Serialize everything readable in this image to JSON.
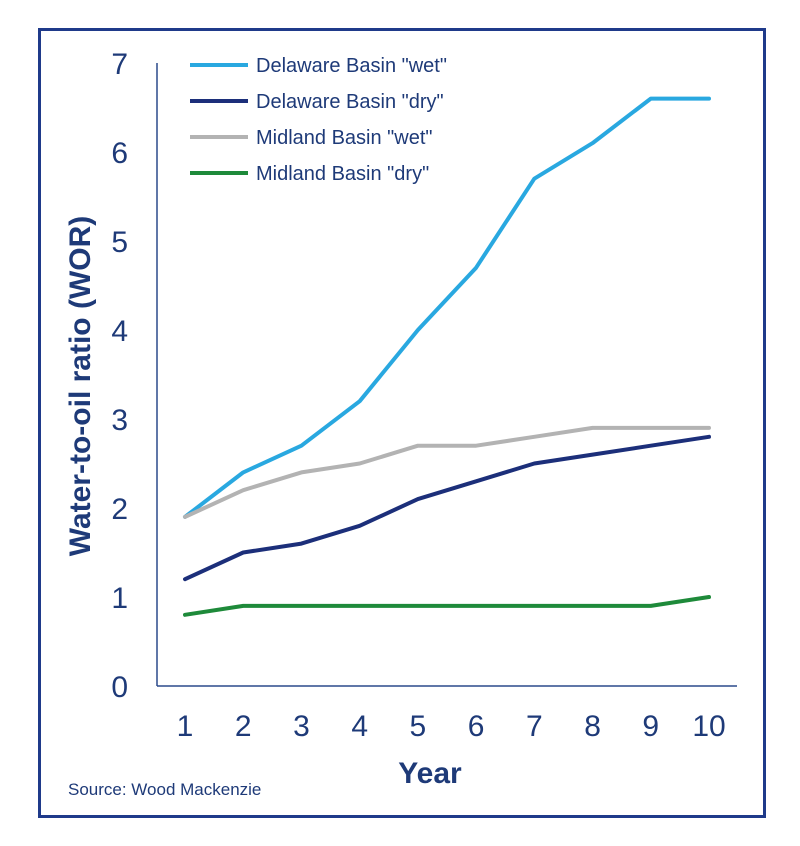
{
  "chart_data": {
    "type": "line",
    "xlabel": "Year",
    "ylabel": "Water-to-oil ratio (WOR)",
    "x": [
      1,
      2,
      3,
      4,
      5,
      6,
      7,
      8,
      9,
      10
    ],
    "x_ticks": [
      "1",
      "2",
      "3",
      "4",
      "5",
      "6",
      "7",
      "8",
      "9",
      "10"
    ],
    "ylim": [
      0,
      7
    ],
    "y_ticks": [
      "0",
      "1",
      "2",
      "3",
      "4",
      "5",
      "6",
      "7"
    ],
    "grid": false,
    "legend_position": "top-left",
    "series": [
      {
        "name": "Delaware Basin \"wet\"",
        "color": "#29a8e0",
        "values": [
          1.9,
          2.4,
          2.7,
          3.2,
          4.0,
          4.7,
          5.7,
          6.1,
          6.6,
          6.6
        ]
      },
      {
        "name": "Delaware Basin \"dry\"",
        "color": "#1c2f7a",
        "values": [
          1.2,
          1.5,
          1.6,
          1.8,
          2.1,
          2.3,
          2.5,
          2.6,
          2.7,
          2.8
        ]
      },
      {
        "name": "Midland Basin \"wet\"",
        "color": "#b3b3b3",
        "values": [
          1.9,
          2.2,
          2.4,
          2.5,
          2.7,
          2.7,
          2.8,
          2.9,
          2.9,
          2.9
        ]
      },
      {
        "name": "Midland Basin \"dry\"",
        "color": "#1e8a3a",
        "values": [
          0.8,
          0.9,
          0.9,
          0.9,
          0.9,
          0.9,
          0.9,
          0.9,
          0.9,
          1.0
        ]
      }
    ]
  },
  "source": "Source: Wood Mackenzie",
  "colors": {
    "frame": "#1f3a8a",
    "axis": "#1e3a78"
  }
}
